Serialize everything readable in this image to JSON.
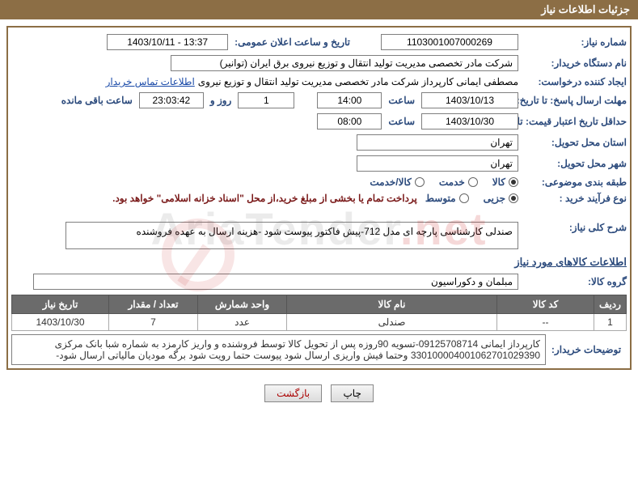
{
  "header": {
    "title": "جزئیات اطلاعات نیاز"
  },
  "fields": {
    "request_no_label": "شماره نیاز:",
    "request_no": "1103001007000269",
    "announce_dt_label": "تاریخ و ساعت اعلان عمومی:",
    "announce_dt": "1403/10/11 - 13:37",
    "buyer_org_label": "نام دستگاه خریدار:",
    "buyer_org": "شرکت مادر تخصصی مدیریت تولید انتقال و توزیع نیروی برق ایران (توانیر)",
    "requester_label": "ایجاد کننده درخواست:",
    "requester": "مصطفی ایمانی کارپرداز شرکت مادر تخصصی مدیریت تولید انتقال و توزیع نیروی",
    "buyer_contact": "اطلاعات تماس خریدار",
    "reply_deadline_label": "مهلت ارسال پاسخ: تا تاریخ:",
    "reply_date": "1403/10/13",
    "time_label": "ساعت",
    "reply_time": "14:00",
    "days": "1",
    "days_label": "روز و",
    "countdown": "23:03:42",
    "remaining_label": "ساعت باقی مانده",
    "quote_validity_label": "حداقل تاریخ اعتبار قیمت: تا تاریخ:",
    "quote_validity_date": "1403/10/30",
    "quote_validity_time": "08:00",
    "delivery_province_label": "استان محل تحویل:",
    "delivery_province": "تهران",
    "delivery_city_label": "شهر محل تحویل:",
    "delivery_city": "تهران",
    "category_label": "طبقه بندی موضوعی:",
    "category_options": [
      "کالا",
      "خدمت",
      "کالا/خدمت"
    ],
    "category_selected_index": 0,
    "purchase_type_label": "نوع فرآیند خرید :",
    "purchase_options": [
      "جزیی",
      "متوسط"
    ],
    "purchase_selected_index": 0,
    "payment_note": "پرداخت تمام یا بخشی از مبلغ خرید،از محل \"اسناد خزانه اسلامی\" خواهد بود.",
    "general_desc_label": "شرح کلی نیاز:",
    "general_desc": "صندلی کارشناسی پارچه ای مدل 712-پیش فاکتور پیوست شود -هزینه ارسال به عهده فروشنده",
    "goods_section_title": "اطلاعات کالاهای مورد نیاز",
    "goods_group_label": "گروه کالا:",
    "goods_group": "مبلمان و دکوراسیون"
  },
  "table": {
    "columns": [
      "ردیف",
      "کد کالا",
      "نام کالا",
      "واحد شمارش",
      "تعداد / مقدار",
      "تاریخ نیاز"
    ],
    "widths": [
      "40px",
      "120px",
      "auto",
      "110px",
      "110px",
      "120px"
    ],
    "rows": [
      [
        "1",
        "--",
        "صندلی",
        "عدد",
        "7",
        "1403/10/30"
      ]
    ]
  },
  "buyer_notes": {
    "label": "توضیحات خریدار:",
    "text": "کارپرداز ایمانی 09125708714-تسویه 90روزه پس از تحویل کالا توسط فروشنده و واریز کارمزد به شماره شبا بانک مرکزی 330100004001062701029390 وحتما فیش واریزی ارسال شود پیوست حتما رویت شود برگه مودیان مالیاتی ارسال شود-"
  },
  "buttons": {
    "print": "چاپ",
    "back": "بازگشت"
  },
  "watermark": {
    "text_plain": "AriaTender",
    "text_red": ".net"
  },
  "style": {
    "brand_color": "#8c6e45",
    "label_color": "#2b4a7c",
    "header_text_color": "#ffffff",
    "th_bg": "#6b6b6b",
    "maroon": "#7a1a1a"
  }
}
